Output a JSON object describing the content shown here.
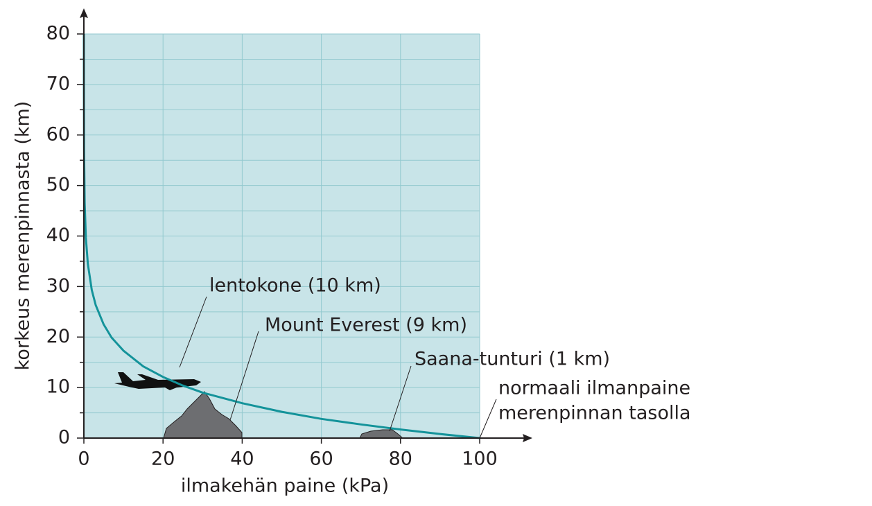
{
  "chart_data": {
    "type": "line",
    "xlabel": "ilmakehän paine (kPa)",
    "ylabel": "korkeus merenpinnasta (km)",
    "x": [
      0.0023,
      0.01,
      0.05,
      0.2,
      0.5,
      1,
      2,
      3,
      5,
      7,
      10,
      15,
      20,
      25,
      30,
      40,
      50,
      60,
      70,
      80,
      90,
      100
    ],
    "series": [
      {
        "color": "#14939a",
        "values": [
          80,
          69.1,
          57.0,
          46.6,
          39.7,
          34.5,
          29.3,
          26.3,
          22.5,
          19.9,
          17.3,
          14.2,
          12.1,
          10.4,
          9.0,
          6.9,
          5.2,
          3.8,
          2.7,
          1.7,
          0.8,
          0
        ]
      }
    ],
    "xlim": [
      0,
      100
    ],
    "ylim": [
      0,
      80
    ],
    "xticks": [
      0,
      20,
      40,
      60,
      80,
      100
    ],
    "yticks": [
      0,
      10,
      20,
      30,
      40,
      50,
      60,
      70,
      80
    ],
    "yminorticks": [
      5,
      15,
      25,
      35,
      45,
      55,
      65,
      75
    ],
    "grid": true,
    "annotations": [
      [
        "lentokone (10 km)"
      ],
      [
        "Mount Everest (9 km)"
      ],
      [
        "Saana-tunturi (1 km)"
      ],
      [
        "normaali ilmanpaine",
        "merenpinnan tasolla"
      ]
    ]
  }
}
